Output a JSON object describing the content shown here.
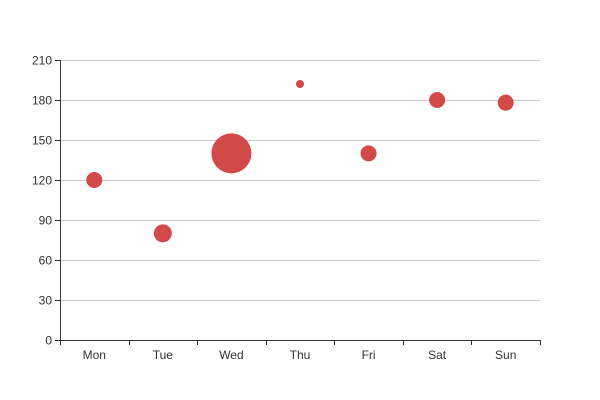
{
  "chart_data": {
    "type": "scatter",
    "categories": [
      "Mon",
      "Tue",
      "Wed",
      "Thu",
      "Fri",
      "Sat",
      "Sun"
    ],
    "points": [
      {
        "category": "Mon",
        "value": 120,
        "size": 8
      },
      {
        "category": "Tue",
        "value": 80,
        "size": 9
      },
      {
        "category": "Wed",
        "value": 140,
        "size": 20
      },
      {
        "category": "Thu",
        "value": 192,
        "size": 4
      },
      {
        "category": "Fri",
        "value": 140,
        "size": 8
      },
      {
        "category": "Sat",
        "value": 180,
        "size": 8
      },
      {
        "category": "Sun",
        "value": 178,
        "size": 8
      }
    ],
    "ylim": [
      0,
      210
    ],
    "yticks": [
      0,
      30,
      60,
      90,
      120,
      150,
      180,
      210
    ],
    "grid": true,
    "colors": {
      "point": "#d14a48",
      "grid": "#cccccc",
      "axis": "#333333"
    }
  }
}
